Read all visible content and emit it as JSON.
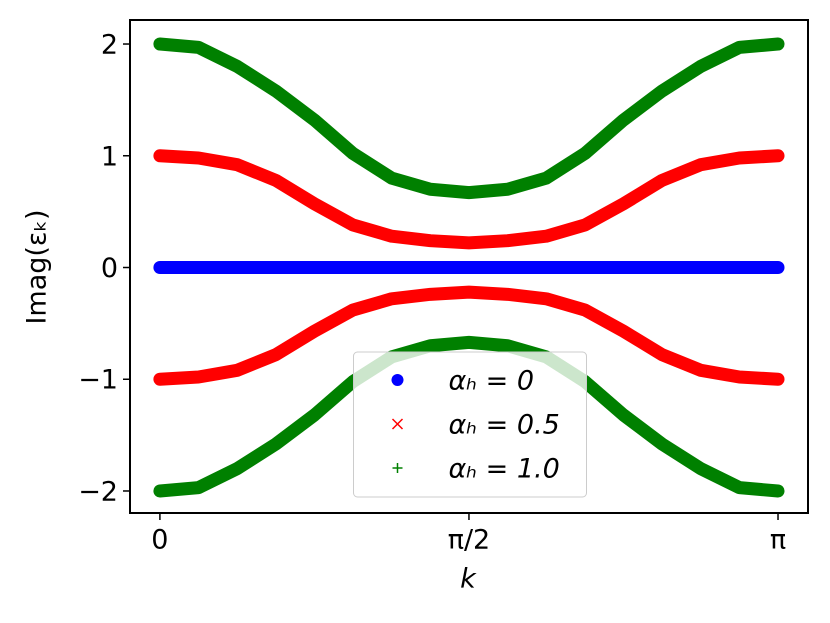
{
  "chart_data": {
    "type": "line",
    "x_label": "k",
    "y_label": "Imag(εₖ)",
    "x": [
      0,
      0.1963,
      0.3927,
      0.589,
      0.7854,
      0.9817,
      1.1781,
      1.3744,
      1.5708,
      1.7671,
      1.9635,
      2.1598,
      2.3562,
      2.5525,
      2.7489,
      2.9452,
      3.1416
    ],
    "xlim": [
      -0.152,
      3.294
    ],
    "xticks": [
      0,
      {
        "value": 1.5708,
        "label": "π/2"
      },
      {
        "value": 3.1416,
        "label": "π"
      }
    ],
    "ylim": [
      -2.197,
      2.215
    ],
    "yticks": [
      {
        "value": -2,
        "label": "−2"
      },
      {
        "value": -1,
        "label": "−1"
      },
      0,
      1,
      2
    ],
    "legend": "lower center",
    "series": [
      {
        "name": "αₕ = 0",
        "color": "#0000ff",
        "marker": "o",
        "branches": [
          [
            0,
            0,
            0,
            0,
            0,
            0,
            0,
            0,
            0,
            0,
            0,
            0,
            0,
            0,
            0,
            0,
            0
          ]
        ]
      },
      {
        "name": "αₕ = 0.5",
        "color": "#ff0000",
        "marker": "x",
        "branches": [
          [
            1,
            0.98,
            0.92,
            0.78,
            0.57,
            0.38,
            0.28,
            0.24,
            0.22,
            0.24,
            0.28,
            0.38,
            0.57,
            0.78,
            0.92,
            0.98,
            1
          ],
          [
            -1,
            -0.98,
            -0.92,
            -0.78,
            -0.57,
            -0.38,
            -0.28,
            -0.24,
            -0.22,
            -0.24,
            -0.28,
            -0.38,
            -0.57,
            -0.78,
            -0.92,
            -0.98,
            -1
          ]
        ]
      },
      {
        "name": "αₕ = 1.0",
        "color": "#008000",
        "marker": "+",
        "branches": [
          [
            2,
            1.97,
            1.8,
            1.58,
            1.32,
            1.02,
            0.8,
            0.7,
            0.67,
            0.7,
            0.8,
            1.02,
            1.32,
            1.58,
            1.8,
            1.97,
            2
          ],
          [
            -2,
            -1.97,
            -1.8,
            -1.58,
            -1.32,
            -1.02,
            -0.8,
            -0.7,
            -0.67,
            -0.7,
            -0.8,
            -1.02,
            -1.32,
            -1.58,
            -1.8,
            -1.97,
            -2
          ]
        ]
      }
    ]
  }
}
